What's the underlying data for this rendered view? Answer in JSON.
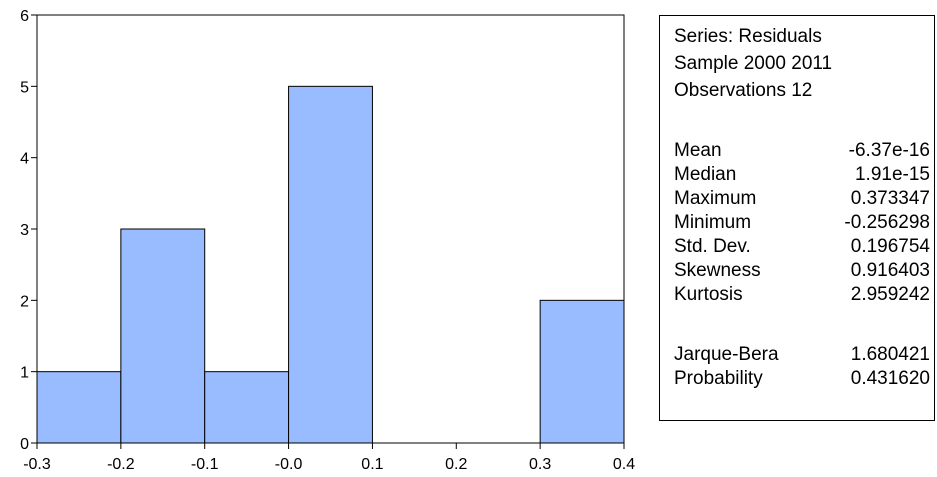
{
  "chart_data": {
    "type": "bar",
    "title": "",
    "xlabel": "",
    "ylabel": "",
    "bins": [
      {
        "from": -0.3,
        "to": -0.2,
        "count": 1
      },
      {
        "from": -0.2,
        "to": -0.1,
        "count": 3
      },
      {
        "from": -0.1,
        "to": 0.0,
        "count": 1
      },
      {
        "from": 0.0,
        "to": 0.1,
        "count": 5
      },
      {
        "from": 0.1,
        "to": 0.2,
        "count": 0
      },
      {
        "from": 0.2,
        "to": 0.3,
        "count": 0
      },
      {
        "from": 0.3,
        "to": 0.4,
        "count": 2
      }
    ],
    "xlim": [
      -0.3,
      0.4
    ],
    "ylim": [
      0,
      6
    ],
    "x_ticks": [
      "-0.3",
      "-0.2",
      "-0.1",
      "-0.0",
      "0.1",
      "0.2",
      "0.3",
      "0.4"
    ],
    "y_ticks": [
      "0",
      "1",
      "2",
      "3",
      "4",
      "5",
      "6"
    ],
    "bar_color": "#99BBFF",
    "grid": false
  },
  "stats": {
    "header": [
      "Series: Residuals",
      "Sample 2000 2011",
      "Observations 12"
    ],
    "rows": [
      {
        "label": "Mean",
        "value": "-6.37e-16"
      },
      {
        "label": "Median",
        "value": "1.91e-15"
      },
      {
        "label": "Maximum",
        "value": "0.373347"
      },
      {
        "label": "Minimum",
        "value": "-0.256298"
      },
      {
        "label": "Std. Dev.",
        "value": "0.196754"
      },
      {
        "label": "Skewness",
        "value": "0.916403"
      },
      {
        "label": "Kurtosis",
        "value": "2.959242"
      }
    ],
    "tests": [
      {
        "label": "Jarque-Bera",
        "value": "1.680421"
      },
      {
        "label": "Probability",
        "value": "0.431620"
      }
    ]
  }
}
